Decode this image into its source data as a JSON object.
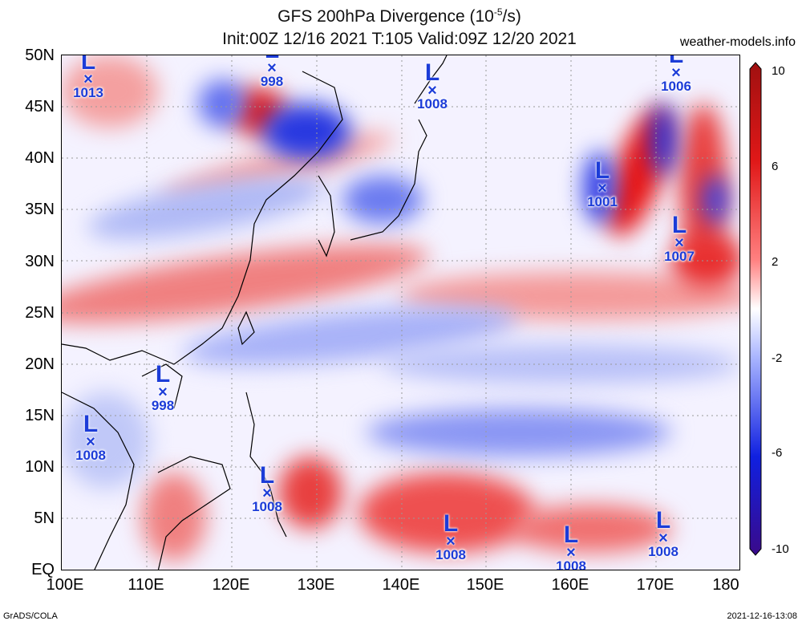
{
  "header": {
    "title_line1": "GFS 200hPa Divergence (10",
    "title_exp": "-5",
    "title_unit": "/s)",
    "title_line2": "Init:00Z 12/16 2021 T:105 Valid:09Z 12/20 2021",
    "site": "weather-models.info"
  },
  "axes": {
    "lat_labels": [
      "50N",
      "45N",
      "40N",
      "35N",
      "30N",
      "25N",
      "20N",
      "15N",
      "10N",
      "5N",
      "EQ"
    ],
    "lon_labels": [
      "100E",
      "110E",
      "120E",
      "130E",
      "140E",
      "150E",
      "160E",
      "170E",
      "180"
    ]
  },
  "colorbar": {
    "labels": [
      "10",
      "6",
      "2",
      "-2",
      "-6",
      "-10"
    ],
    "colors": [
      "#a01010",
      "#e01818",
      "#ff6060",
      "#ffd0d0",
      "#ffffff",
      "#c8d2ff",
      "#5a6cff",
      "#1020e0",
      "#3a0a8a"
    ]
  },
  "lows": [
    {
      "pressure": "1013"
    },
    {
      "pressure": "998"
    },
    {
      "pressure": "1008"
    },
    {
      "pressure": "1006"
    },
    {
      "pressure": "1001"
    },
    {
      "pressure": "1007"
    },
    {
      "pressure": "998"
    },
    {
      "pressure": "1008"
    },
    {
      "pressure": "1008"
    },
    {
      "pressure": "1008"
    },
    {
      "pressure": "1008"
    },
    {
      "pressure": "1008"
    }
  ],
  "low_symbol": "L",
  "center_symbol": "×",
  "footer": {
    "left": "GrADS/COLA",
    "right": "2021-12-16-13:08"
  }
}
